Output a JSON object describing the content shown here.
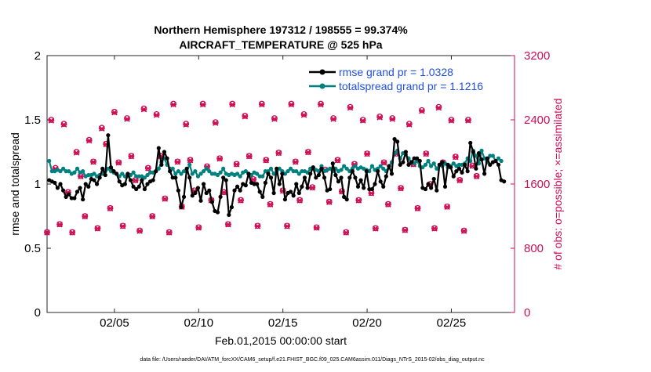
{
  "chart_data": {
    "type": "line",
    "title_line1": "Northern Hemisphere 197312 / 198555 = 99.374%",
    "title_line2": "AIRCRAFT_TEMPERATURE @ 525 hPa",
    "xlabel": "Feb.01,2015 00:00:00 start",
    "ylabel_left": "rmse and totalspread",
    "ylabel_right": "# of obs: o=possible; ×=assimilated",
    "footnote": "data file: /Users/raeder/DAI/ATM_forcXX/CAM6_setup/f.e21.FHIST_BGC.f09_025.CAM6assim.011/Diags_NTrS_2015-02/obs_diag_output.nc",
    "x_range": [
      1,
      28.75
    ],
    "x_tick_values": [
      5,
      10,
      15,
      20,
      25
    ],
    "x_tick_labels": [
      "02/05",
      "02/10",
      "02/15",
      "02/20",
      "02/25"
    ],
    "y_left_range": [
      0,
      2
    ],
    "y_left_tick_values": [
      0,
      0.5,
      1,
      1.5,
      2
    ],
    "y_left_tick_labels": [
      "0",
      "0.5",
      "1",
      "1.5",
      "2"
    ],
    "y_right_range": [
      0,
      3200
    ],
    "y_right_tick_values": [
      0,
      800,
      1600,
      2400,
      3200
    ],
    "y_right_tick_labels": [
      "0",
      "800",
      "1600",
      "2400",
      "3200"
    ],
    "colors": {
      "rmse": "#000000",
      "spread": "#00807f",
      "obs": "#cc0f55",
      "legend_text": "#1f4fe0",
      "right_axis": "#cc0f55"
    },
    "series": [
      {
        "name": "rmse grand pr = 1.0328",
        "key": "rmse",
        "values": [
          1.03,
          1.02,
          1.01,
          0.97,
          1.0,
          0.95,
          0.9,
          0.92,
          0.89,
          0.89,
          0.94,
          0.97,
          0.88,
          1.0,
          0.98,
          1.04,
          1.03,
          1.0,
          1.05,
          1.12,
          1.07,
          1.38,
          1.13,
          1.1,
          1.08,
          1.02,
          0.99,
          1.0,
          1.08,
          1.03,
          0.98,
          0.96,
          0.98,
          1.03,
          0.96,
          1.0,
          1.02,
          1.03,
          1.1,
          1.28,
          1.15,
          1.25,
          1.2,
          1.1,
          1.05,
          1.05,
          0.95,
          0.82,
          0.9,
          1.12,
          1.05,
          0.91,
          0.93,
          0.97,
          0.87,
          1.0,
          0.93,
          0.95,
          0.86,
          0.79,
          0.78,
          0.9,
          1.05,
          1.03,
          0.76,
          0.82,
          0.95,
          0.98,
          0.95,
          1.0,
          0.99,
          1.08,
          1.01,
          1.0,
          1.0,
          0.94,
          0.9,
          1.01,
          1.08,
          1.05,
          0.93,
          1.12,
          1.0,
          1.08,
          0.88,
          0.93,
          0.94,
          0.91,
          1.0,
          0.93,
          0.98,
          1.05,
          0.97,
          1.08,
          1.13,
          1.05,
          1.07,
          1.12,
          1.05,
          0.95,
          0.96,
          1.16,
          1.07,
          1.02,
          1.05,
          0.9,
          0.88,
          1.05,
          1.1,
          1.05,
          0.98,
          1.03,
          0.97,
          1.1,
          0.96,
          0.96,
          1.0,
          1.1,
          1.02,
          0.98,
          1.06,
          1.14,
          1.08,
          1.35,
          1.33,
          1.15,
          1.17,
          1.25,
          1.15,
          1.17,
          1.2,
          1.2,
          1.18,
          0.97,
          0.96,
          1.0,
          0.97,
          1.04,
          0.95,
          1.15,
          1.17,
          0.98,
          1.15,
          1.13,
          1.06,
          1.1,
          1.12,
          1.09,
          1.15,
          1.1,
          1.32,
          1.25,
          1.12,
          1.24,
          1.19,
          1.08,
          1.2,
          1.15,
          1.17,
          1.18,
          1.15,
          1.03,
          1.02
        ],
        "start_x": 1.125,
        "step": 0.1667
      },
      {
        "name": "totalspread grand pr = 1.1216",
        "key": "spread",
        "values": [
          1.18,
          1.1,
          1.1,
          1.11,
          1.1,
          1.12,
          1.1,
          1.1,
          1.08,
          1.09,
          1.12,
          1.09,
          1.1,
          1.06,
          1.07,
          1.07,
          1.08,
          1.06,
          1.07,
          1.08,
          1.1,
          1.12,
          1.1,
          1.09,
          1.08,
          1.06,
          1.08,
          1.06,
          1.06,
          1.07,
          1.09,
          1.06,
          1.06,
          1.06,
          1.05,
          1.07,
          1.09,
          1.09,
          1.1,
          1.12,
          1.17,
          1.2,
          1.15,
          1.12,
          1.12,
          1.08,
          1.1,
          1.08,
          1.1,
          1.1,
          1.15,
          1.08,
          1.1,
          1.06,
          1.08,
          1.1,
          1.12,
          1.1,
          1.08,
          1.08,
          1.07,
          1.09,
          1.12,
          1.08,
          1.07,
          1.08,
          1.07,
          1.08,
          1.06,
          1.09,
          1.1,
          1.08,
          1.07,
          1.09,
          1.08,
          1.06,
          1.06,
          1.1,
          1.1,
          1.12,
          1.08,
          1.1,
          1.12,
          1.1,
          1.08,
          1.1,
          1.12,
          1.1,
          1.1,
          1.08,
          1.1,
          1.1,
          1.09,
          1.12,
          1.13,
          1.11,
          1.1,
          1.14,
          1.1,
          1.11,
          1.12,
          1.1,
          1.12,
          1.1,
          1.11,
          1.14,
          1.12,
          1.1,
          1.12,
          1.14,
          1.12,
          1.13,
          1.12,
          1.11,
          1.1,
          1.14,
          1.11,
          1.12,
          1.14,
          1.12,
          1.1,
          1.14,
          1.17,
          1.24,
          1.26,
          1.2,
          1.24,
          1.23,
          1.2,
          1.17,
          1.16,
          1.18,
          1.14,
          1.13,
          1.15,
          1.18,
          1.14,
          1.16,
          1.12,
          1.15,
          1.14,
          1.16,
          1.13,
          1.14,
          1.16,
          1.14,
          1.15,
          1.15,
          1.16,
          1.2,
          1.18,
          1.26,
          1.22,
          1.16,
          1.26,
          1.2,
          1.17,
          1.22,
          1.22,
          1.18,
          1.2,
          1.18
        ],
        "start_x": 1.125,
        "step": 0.1667
      }
    ],
    "obs_count": {
      "name": "# of obs",
      "period_days": 0.25,
      "start_x": 1.0,
      "possible": [
        1000,
        2400,
        1800,
        1100,
        2350,
        1500,
        1000,
        2000,
        1700,
        1200,
        2150,
        1880,
        1050,
        2300,
        2100,
        1300,
        2500,
        1870,
        1080,
        2420,
        1950,
        1650,
        1020,
        2540,
        1800,
        1200,
        2470,
        1950,
        1420,
        1000,
        2600,
        1880,
        1320,
        2350,
        1900,
        1520,
        1060,
        2600,
        1820,
        1400,
        2370,
        1920,
        1500,
        1100,
        2600,
        1850,
        1400,
        2450,
        1950,
        1660,
        1080,
        2600,
        1900,
        1350,
        2420,
        1990,
        1520,
        1080,
        2600,
        1880,
        1400,
        2470,
        2000,
        1560,
        1060,
        2600,
        1780,
        1380,
        2420,
        1900,
        1510,
        1000,
        2560,
        1850,
        1400,
        2400,
        1980,
        1490,
        1050,
        2440,
        1870,
        1350,
        2420,
        1980,
        1550,
        1030,
        2350,
        1850,
        1300,
        2520,
        1980,
        1600,
        1050,
        2560,
        1870,
        1320,
        2400,
        1940,
        1650,
        1020,
        2400,
        1830,
        1700
      ],
      "assimilated": [
        995,
        2390,
        1790,
        1095,
        2340,
        1495,
        995,
        1990,
        1695,
        1195,
        2140,
        1875,
        1045,
        2290,
        2095,
        1295,
        2490,
        1865,
        1075,
        2410,
        1945,
        1645,
        1015,
        2530,
        1795,
        1195,
        2460,
        1945,
        1415,
        995,
        2590,
        1875,
        1315,
        2340,
        1895,
        1515,
        1055,
        2590,
        1815,
        1395,
        2360,
        1915,
        1495,
        1095,
        2590,
        1845,
        1395,
        2440,
        1945,
        1655,
        1075,
        2590,
        1895,
        1345,
        2410,
        1985,
        1515,
        1075,
        2590,
        1875,
        1395,
        2460,
        1995,
        1555,
        1055,
        2590,
        1775,
        1375,
        2410,
        1895,
        1505,
        995,
        2550,
        1845,
        1395,
        2390,
        1975,
        1485,
        1045,
        2430,
        1865,
        1345,
        2410,
        1975,
        1545,
        1025,
        2340,
        1845,
        1295,
        2510,
        1975,
        1595,
        1045,
        2550,
        1865,
        1315,
        2390,
        1935,
        1645,
        1015,
        2390,
        1825,
        1695
      ]
    }
  }
}
